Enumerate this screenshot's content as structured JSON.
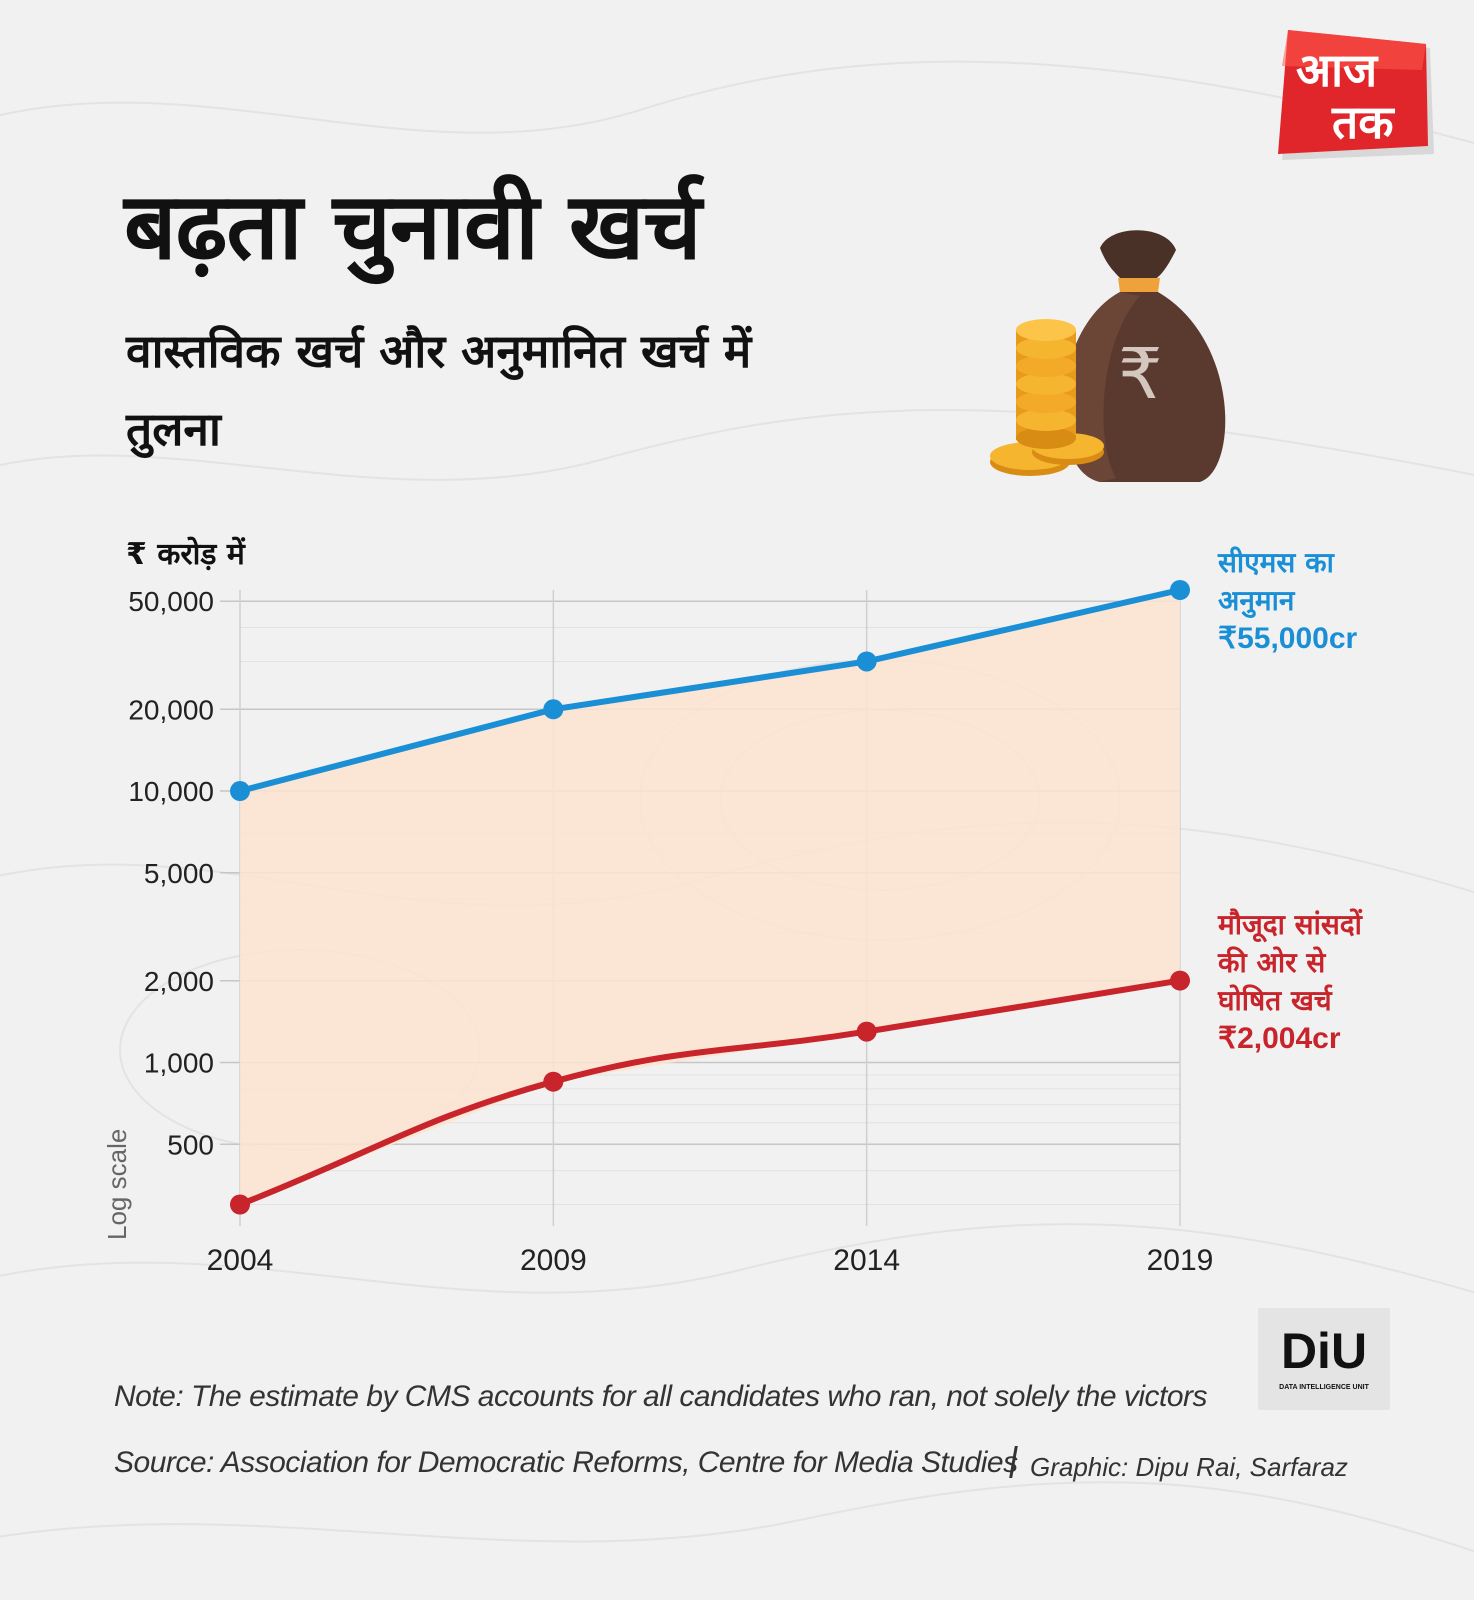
{
  "brand": {
    "logo_line1": "आज",
    "logo_line2": "तक"
  },
  "header": {
    "title": "बढ़ता चुनावी खर्च",
    "subtitle": "वास्तविक खर्च और अनुमानित खर्च में तुलना"
  },
  "colors": {
    "cms": "#1a8fd6",
    "mp": "#c8242b",
    "fill": "#fde3cf"
  },
  "chart_data": {
    "type": "line",
    "x": [
      2004,
      2009,
      2014,
      2019
    ],
    "ylabel": "₹ करोड़ में",
    "scale_label": "Log scale",
    "yscale": "log",
    "ylim": [
      250,
      55000
    ],
    "yticks": [
      500,
      1000,
      2000,
      5000,
      10000,
      20000,
      50000
    ],
    "ytick_labels": [
      "500",
      "1,000",
      "2,000",
      "5,000",
      "10,000",
      "20,000",
      "50,000"
    ],
    "grid": true,
    "fill_between": true,
    "series": [
      {
        "name": "सीएमस का अनुमान",
        "values": [
          10000,
          20000,
          30000,
          55000
        ],
        "end_label": "₹55,000cr"
      },
      {
        "name": "मौजूदा सांसदों की ओर से घोषित खर्च",
        "values": [
          300,
          850,
          1300,
          2004
        ],
        "end_label": "₹2,004cr"
      }
    ]
  },
  "annotations": {
    "cms_line1": "सीएमस का",
    "cms_line2": "अनुमान",
    "mp_line1": "मौजूदा सांसदों",
    "mp_line2": "की ओर से",
    "mp_line3": "घोषित खर्च"
  },
  "footer": {
    "diu_logo": "DiU",
    "diu_sub": "DATA INTELLIGENCE UNIT",
    "note": "Note: The estimate by CMS accounts for all candidates who ran, not solely the victors",
    "source": "Source: Association for Democratic Reforms, Centre for Media Studies",
    "graphic": "Graphic: Dipu Rai, Sarfaraz"
  }
}
